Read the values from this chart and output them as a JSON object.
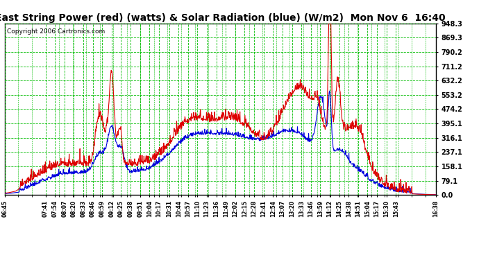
{
  "title": "East String Power (red) (watts) & Solar Radiation (blue) (W/m2)  Mon Nov 6  16:40",
  "copyright_text": "Copyright 2006 Cartronics.com",
  "y_ticks": [
    0.0,
    79.1,
    158.1,
    237.1,
    316.1,
    395.1,
    474.2,
    553.2,
    632.2,
    711.2,
    790.2,
    869.3,
    948.3
  ],
  "y_max": 948.3,
  "y_min": 0.0,
  "background_color": "#ffffff",
  "grid_color": "#00bb00",
  "title_fontsize": 10,
  "copyright_fontsize": 6.5,
  "x_labels": [
    "06:45",
    "07:41",
    "07:54",
    "08:07",
    "08:20",
    "08:33",
    "08:46",
    "08:59",
    "09:12",
    "09:25",
    "09:38",
    "09:51",
    "10:04",
    "10:17",
    "10:31",
    "10:44",
    "10:57",
    "11:10",
    "11:23",
    "11:36",
    "11:49",
    "12:02",
    "12:15",
    "12:28",
    "12:41",
    "12:54",
    "13:07",
    "13:20",
    "13:33",
    "13:46",
    "13:59",
    "14:12",
    "14:25",
    "14:38",
    "14:51",
    "15:04",
    "15:17",
    "15:30",
    "15:43",
    "16:38"
  ],
  "line_red_color": "#dd0000",
  "line_blue_color": "#0000dd",
  "line_width": 0.8
}
